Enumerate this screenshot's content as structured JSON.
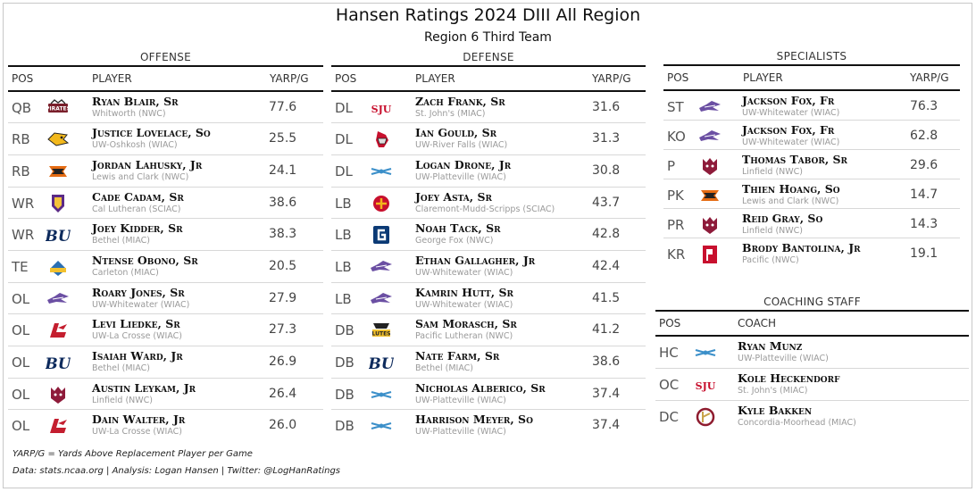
{
  "title": "Hansen Ratings 2024 DIII All Region",
  "subtitle": "Region 6 Third Team",
  "headers": {
    "pos": "POS",
    "player": "PLAYER",
    "value": "YARP/G",
    "coach": "COACH"
  },
  "offense": {
    "title": "OFFENSE",
    "rows": [
      {
        "pos": "QB",
        "logo": "whitworth-logo",
        "name": "Ryan Blair, Sr",
        "school": "Whitworth (NWC)",
        "value": "77.6"
      },
      {
        "pos": "RB",
        "logo": "uw-oshkosh-logo",
        "name": "Justice Lovelace, So",
        "school": "UW-Oshkosh (WIAC)",
        "value": "25.5"
      },
      {
        "pos": "RB",
        "logo": "lewis-clark-logo",
        "name": "Jordan Lahusky, Jr",
        "school": "Lewis and Clark (NWC)",
        "value": "24.1"
      },
      {
        "pos": "WR",
        "logo": "cal-lutheran-logo",
        "name": "Cade Cadam, Sr",
        "school": "Cal Lutheran (SCIAC)",
        "value": "38.6"
      },
      {
        "pos": "WR",
        "logo": "bethel-logo",
        "name": "Joey Kidder, Sr",
        "school": "Bethel (MIAC)",
        "value": "38.3"
      },
      {
        "pos": "TE",
        "logo": "carleton-logo",
        "name": "Ntense Obono, Sr",
        "school": "Carleton (MIAC)",
        "value": "20.5"
      },
      {
        "pos": "OL",
        "logo": "uw-whitewater-logo",
        "name": "Roary Jones, Sr",
        "school": "UW-Whitewater (WIAC)",
        "value": "27.9"
      },
      {
        "pos": "OL",
        "logo": "uw-la-crosse-logo",
        "name": "Levi Liedke, Sr",
        "school": "UW-La Crosse (WIAC)",
        "value": "27.3"
      },
      {
        "pos": "OL",
        "logo": "bethel-logo",
        "name": "Isaiah Ward, Jr",
        "school": "Bethel (MIAC)",
        "value": "26.9"
      },
      {
        "pos": "OL",
        "logo": "linfield-logo",
        "name": "Austin Leykam, Jr",
        "school": "Linfield (NWC)",
        "value": "26.4"
      },
      {
        "pos": "OL",
        "logo": "uw-la-crosse-logo",
        "name": "Dain Walter, Jr",
        "school": "UW-La Crosse (WIAC)",
        "value": "26.0"
      }
    ]
  },
  "defense": {
    "title": "DEFENSE",
    "rows": [
      {
        "pos": "DL",
        "logo": "st-johns-logo",
        "name": "Zach Frank, Sr",
        "school": "St. John's (MIAC)",
        "value": "31.6"
      },
      {
        "pos": "DL",
        "logo": "uw-river-falls-logo",
        "name": "Ian Gould, Sr",
        "school": "UW-River Falls (WIAC)",
        "value": "31.3"
      },
      {
        "pos": "DL",
        "logo": "uw-platteville-logo",
        "name": "Logan Drone, Jr",
        "school": "UW-Platteville (WIAC)",
        "value": "30.8"
      },
      {
        "pos": "LB",
        "logo": "claremont-logo",
        "name": "Joey Asta, Sr",
        "school": "Claremont-Mudd-Scripps (SCIAC)",
        "value": "43.7"
      },
      {
        "pos": "LB",
        "logo": "george-fox-logo",
        "name": "Noah Tack, Sr",
        "school": "George Fox (NWC)",
        "value": "42.8"
      },
      {
        "pos": "LB",
        "logo": "uw-whitewater-logo",
        "name": "Ethan Gallagher, Jr",
        "school": "UW-Whitewater (WIAC)",
        "value": "42.4"
      },
      {
        "pos": "LB",
        "logo": "uw-whitewater-logo",
        "name": "Kamrin Hutt, Sr",
        "school": "UW-Whitewater (WIAC)",
        "value": "41.5"
      },
      {
        "pos": "DB",
        "logo": "pacific-lutheran-logo",
        "name": "Sam Morasch, Sr",
        "school": "Pacific Lutheran (NWC)",
        "value": "41.2"
      },
      {
        "pos": "DB",
        "logo": "bethel-logo",
        "name": "Nate Farm, Sr",
        "school": "Bethel (MIAC)",
        "value": "38.6"
      },
      {
        "pos": "DB",
        "logo": "uw-platteville-logo",
        "name": "Nicholas Alberico, Sr",
        "school": "UW-Platteville (WIAC)",
        "value": "37.4"
      },
      {
        "pos": "DB",
        "logo": "uw-platteville-logo",
        "name": "Harrison Meyer, So",
        "school": "UW-Platteville (WIAC)",
        "value": "37.4"
      }
    ]
  },
  "specialists": {
    "title": "SPECIALISTS",
    "rows": [
      {
        "pos": "ST",
        "logo": "uw-whitewater-logo",
        "name": "Jackson Fox, Fr",
        "school": "UW-Whitewater (WIAC)",
        "value": "76.3"
      },
      {
        "pos": "KO",
        "logo": "uw-whitewater-logo",
        "name": "Jackson Fox, Fr",
        "school": "UW-Whitewater (WIAC)",
        "value": "62.8"
      },
      {
        "pos": "P",
        "logo": "linfield-logo",
        "name": "Thomas Tabor, Sr",
        "school": "Linfield (NWC)",
        "value": "29.6"
      },
      {
        "pos": "PK",
        "logo": "lewis-clark-logo",
        "name": "Thien Hoang, So",
        "school": "Lewis and Clark (NWC)",
        "value": "14.7"
      },
      {
        "pos": "PR",
        "logo": "linfield-logo",
        "name": "Reid Gray, So",
        "school": "Linfield (NWC)",
        "value": "14.3"
      },
      {
        "pos": "KR",
        "logo": "pacific-logo",
        "name": "Brody Bantolina, Jr",
        "school": "Pacific (NWC)",
        "value": "19.1"
      }
    ]
  },
  "coaching": {
    "title": "COACHING STAFF",
    "rows": [
      {
        "pos": "HC",
        "logo": "uw-platteville-logo",
        "name": "Ryan Munz",
        "school": "UW-Platteville (WIAC)"
      },
      {
        "pos": "OC",
        "logo": "st-johns-logo",
        "name": "Kole Heckendorf",
        "school": "St. John's (MIAC)"
      },
      {
        "pos": "DC",
        "logo": "concordia-moorhead-logo",
        "name": "Kyle Bakken",
        "school": "Concordia-Moorhead (MIAC)"
      }
    ]
  },
  "footnote": "YARP/G = Yards Above Replacement Player per Game",
  "credits": "Data: stats.ncaa.org | Analysis: Logan Hansen | Twitter: @LogHanRatings",
  "colors": {
    "rule": "#111111",
    "school_text": "#9a9a9a",
    "row_divider": "#d8d8d8"
  },
  "chart_data": {
    "type": "table",
    "title": "Hansen Ratings 2024 DIII All Region",
    "subtitle": "Region 6 Third Team",
    "metric": "YARP/G",
    "offense": [
      [
        "QB",
        77.6
      ],
      [
        "RB",
        25.5
      ],
      [
        "RB",
        24.1
      ],
      [
        "WR",
        38.6
      ],
      [
        "WR",
        38.3
      ],
      [
        "TE",
        20.5
      ],
      [
        "OL",
        27.9
      ],
      [
        "OL",
        27.3
      ],
      [
        "OL",
        26.9
      ],
      [
        "OL",
        26.4
      ],
      [
        "OL",
        26.0
      ]
    ],
    "defense": [
      [
        "DL",
        31.6
      ],
      [
        "DL",
        31.3
      ],
      [
        "DL",
        30.8
      ],
      [
        "LB",
        43.7
      ],
      [
        "LB",
        42.8
      ],
      [
        "LB",
        42.4
      ],
      [
        "LB",
        41.5
      ],
      [
        "DB",
        41.2
      ],
      [
        "DB",
        38.6
      ],
      [
        "DB",
        37.4
      ],
      [
        "DB",
        37.4
      ]
    ],
    "specialists": [
      [
        "ST",
        76.3
      ],
      [
        "KO",
        62.8
      ],
      [
        "P",
        29.6
      ],
      [
        "PK",
        14.7
      ],
      [
        "PR",
        14.3
      ],
      [
        "KR",
        19.1
      ]
    ]
  }
}
